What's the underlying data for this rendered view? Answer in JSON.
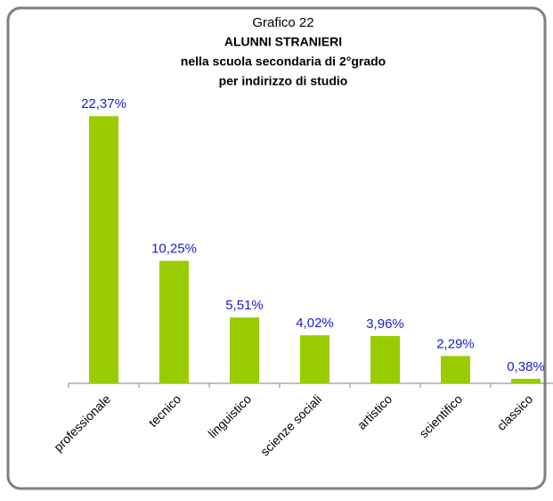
{
  "chart_data": {
    "type": "bar",
    "title_lines": [
      "Grafico 22",
      "ALUNNI STRANIERI",
      "nella scuola secondaria di 2°grado",
      "per indirizzo di studio"
    ],
    "categories": [
      "professionale",
      "tecnico",
      "linguistico",
      "scienze sociali",
      "artistico",
      "scientifico",
      "classico"
    ],
    "values": [
      22.37,
      10.25,
      5.51,
      4.02,
      3.96,
      2.29,
      0.38
    ],
    "value_labels": [
      "22,37%",
      "10,25%",
      "5,51%",
      "4,02%",
      "3,96%",
      "2,29%",
      "0,38%"
    ],
    "color": "#99cc00",
    "label_color": "#1a1ad6",
    "ylim": [
      0,
      25
    ]
  }
}
